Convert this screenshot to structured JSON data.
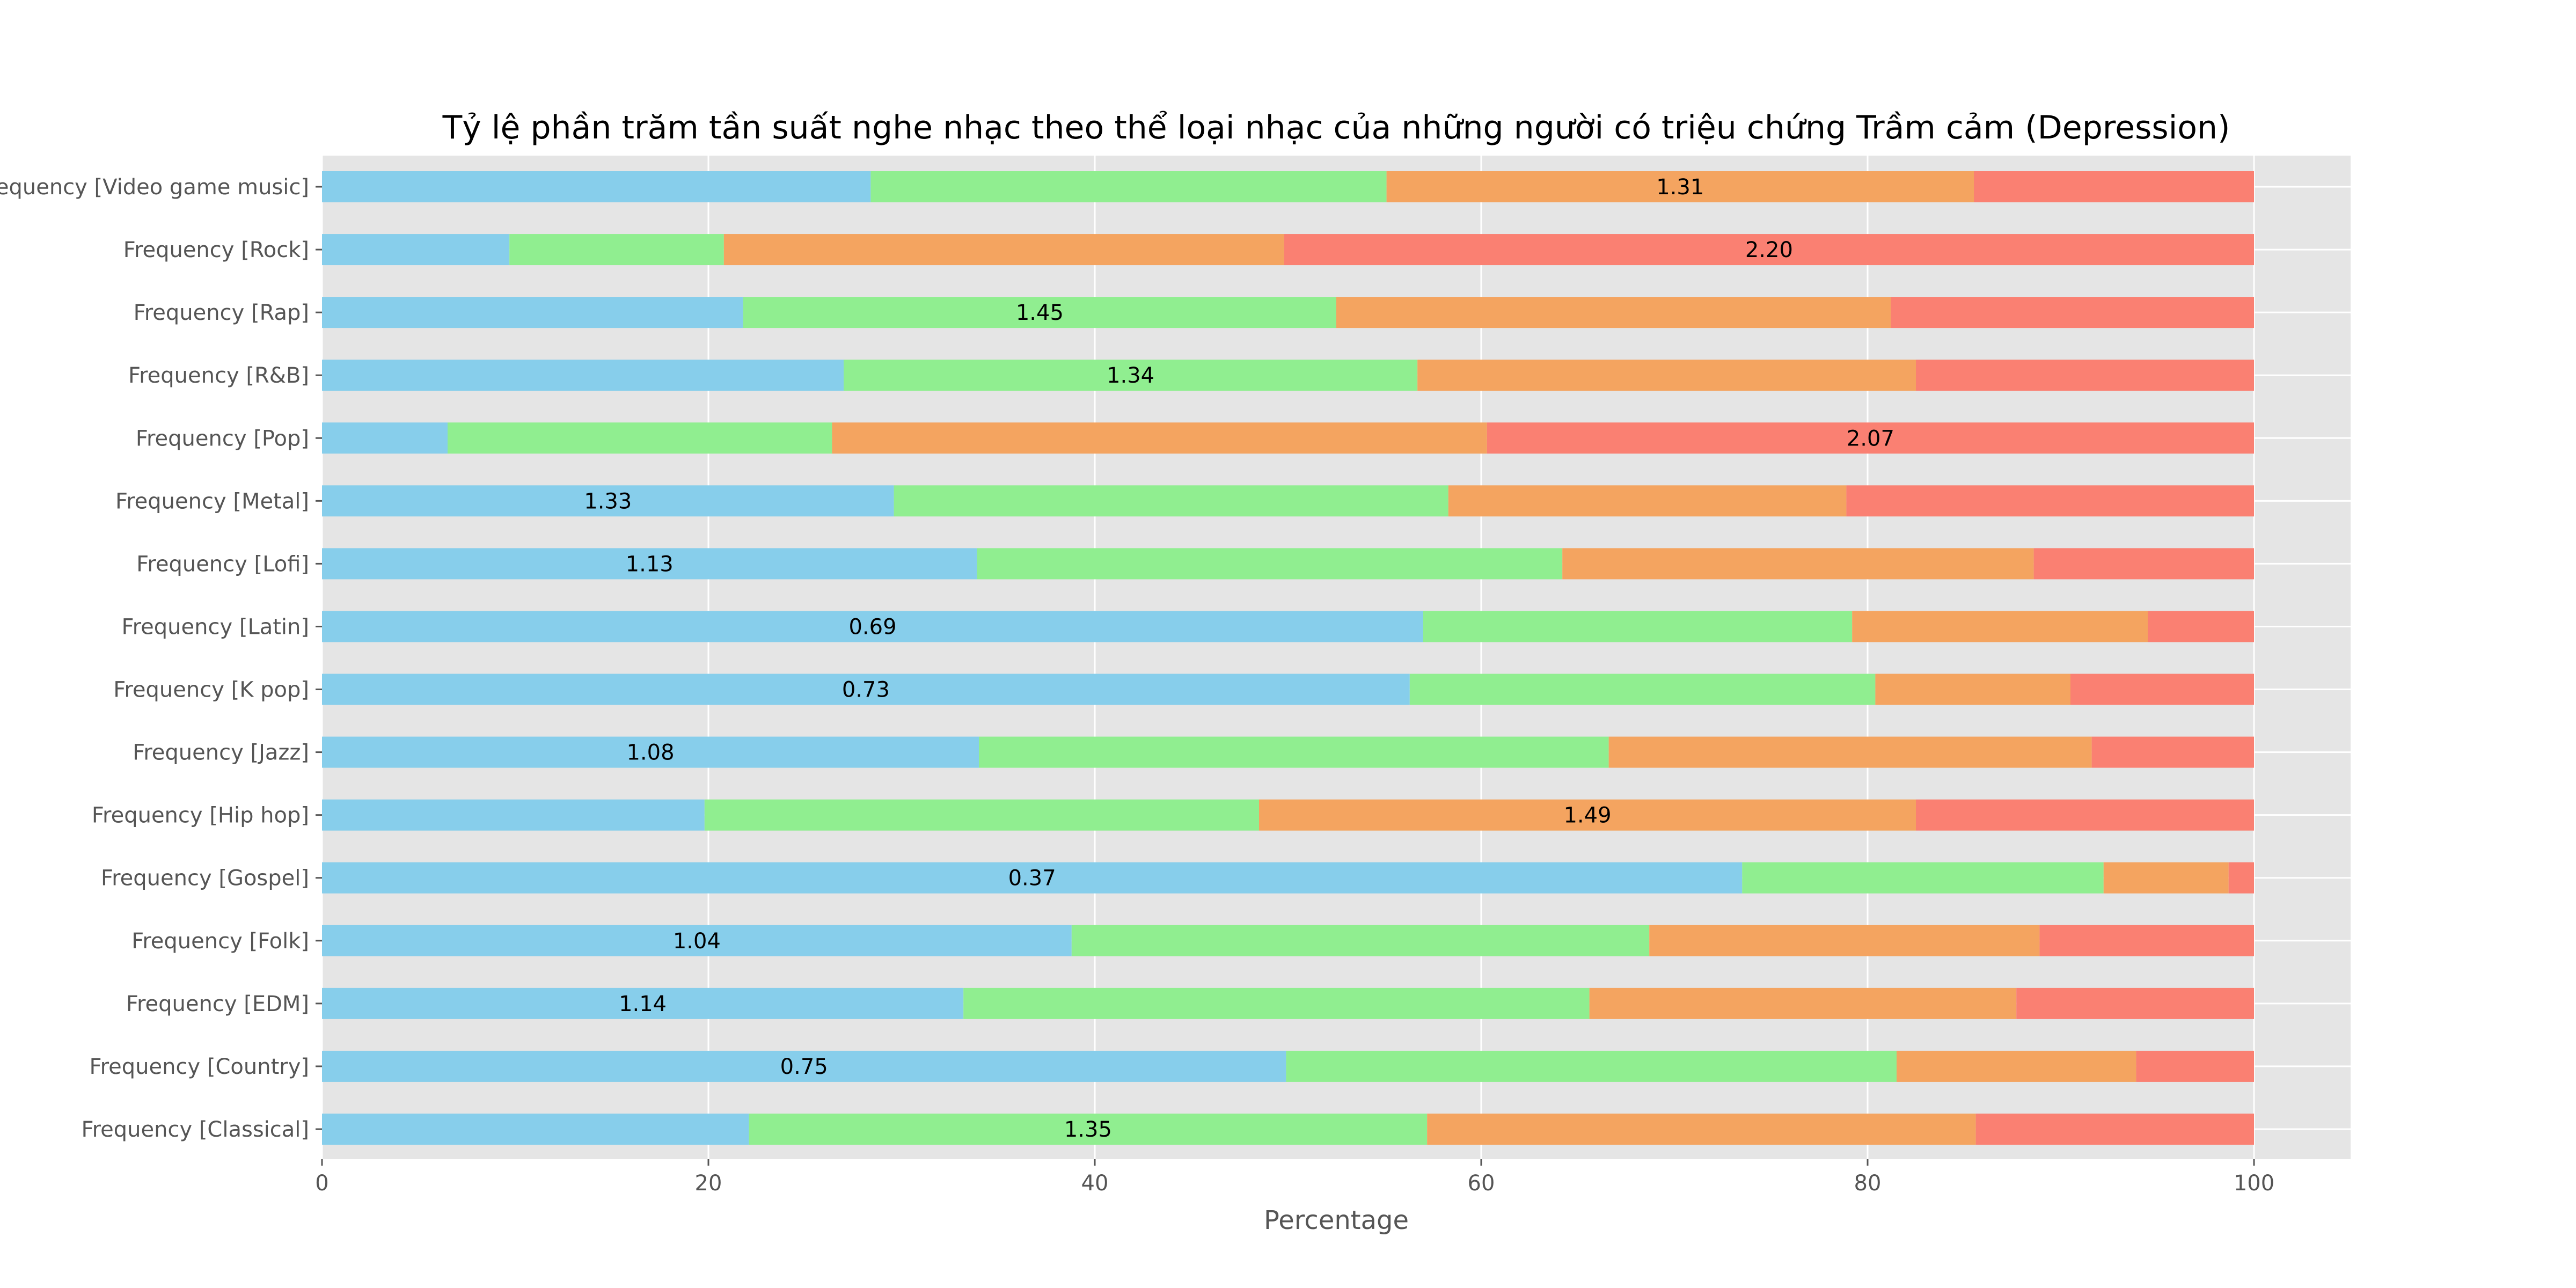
{
  "chart_data": {
    "type": "bar",
    "orientation": "horizontal",
    "stacked": true,
    "title": "Tỷ lệ phần trăm tần suất nghe nhạc theo thể loại nhạc của những người có triệu chứng  Trầm cảm (Depression)",
    "xlabel": "Percentage",
    "ylabel": "",
    "xlim": [
      0,
      105
    ],
    "xticks": [
      "0",
      "20",
      "40",
      "60",
      "80",
      "100"
    ],
    "grid": true,
    "legend": "none",
    "colors": [
      "#87CEEB",
      "#90EE90",
      "#F4A460",
      "#FA8072"
    ],
    "categories": [
      "Frequency [Classical]",
      "Frequency [Country]",
      "Frequency [EDM]",
      "Frequency [Folk]",
      "Frequency [Gospel]",
      "Frequency [Hip hop]",
      "Frequency [Jazz]",
      "Frequency [K pop]",
      "Frequency [Latin]",
      "Frequency [Lofi]",
      "Frequency [Metal]",
      "Frequency [Pop]",
      "Frequency [R&B]",
      "Frequency [Rap]",
      "Frequency [Rock]",
      "Frequency [Video game music]"
    ],
    "series": [
      {
        "values": [
          22.1,
          49.9,
          33.2,
          38.8,
          72.7,
          19.8,
          34.0,
          56.3,
          57.0,
          33.9,
          29.6,
          6.5,
          27.0,
          21.8,
          9.7,
          28.4
        ]
      },
      {
        "values": [
          35.1,
          31.6,
          32.4,
          29.9,
          18.5,
          28.7,
          32.6,
          24.1,
          22.2,
          30.3,
          28.7,
          19.9,
          29.7,
          30.7,
          11.1,
          26.7
        ]
      },
      {
        "values": [
          28.4,
          12.4,
          22.1,
          20.2,
          6.4,
          34.0,
          25.0,
          10.1,
          15.3,
          24.4,
          20.6,
          33.9,
          25.8,
          28.7,
          29.0,
          30.4
        ]
      },
      {
        "values": [
          14.4,
          6.1,
          12.3,
          11.1,
          1.3,
          17.5,
          8.4,
          9.5,
          5.5,
          11.4,
          21.1,
          39.7,
          17.5,
          18.8,
          50.2,
          14.5
        ]
      }
    ],
    "annotations": [
      "1.35",
      "0.75",
      "1.14",
      "1.04",
      "0.37",
      "1.49",
      "1.08",
      "0.73",
      "0.69",
      "1.13",
      "1.33",
      "2.07",
      "1.34",
      "1.45",
      "2.20",
      "1.31"
    ]
  }
}
